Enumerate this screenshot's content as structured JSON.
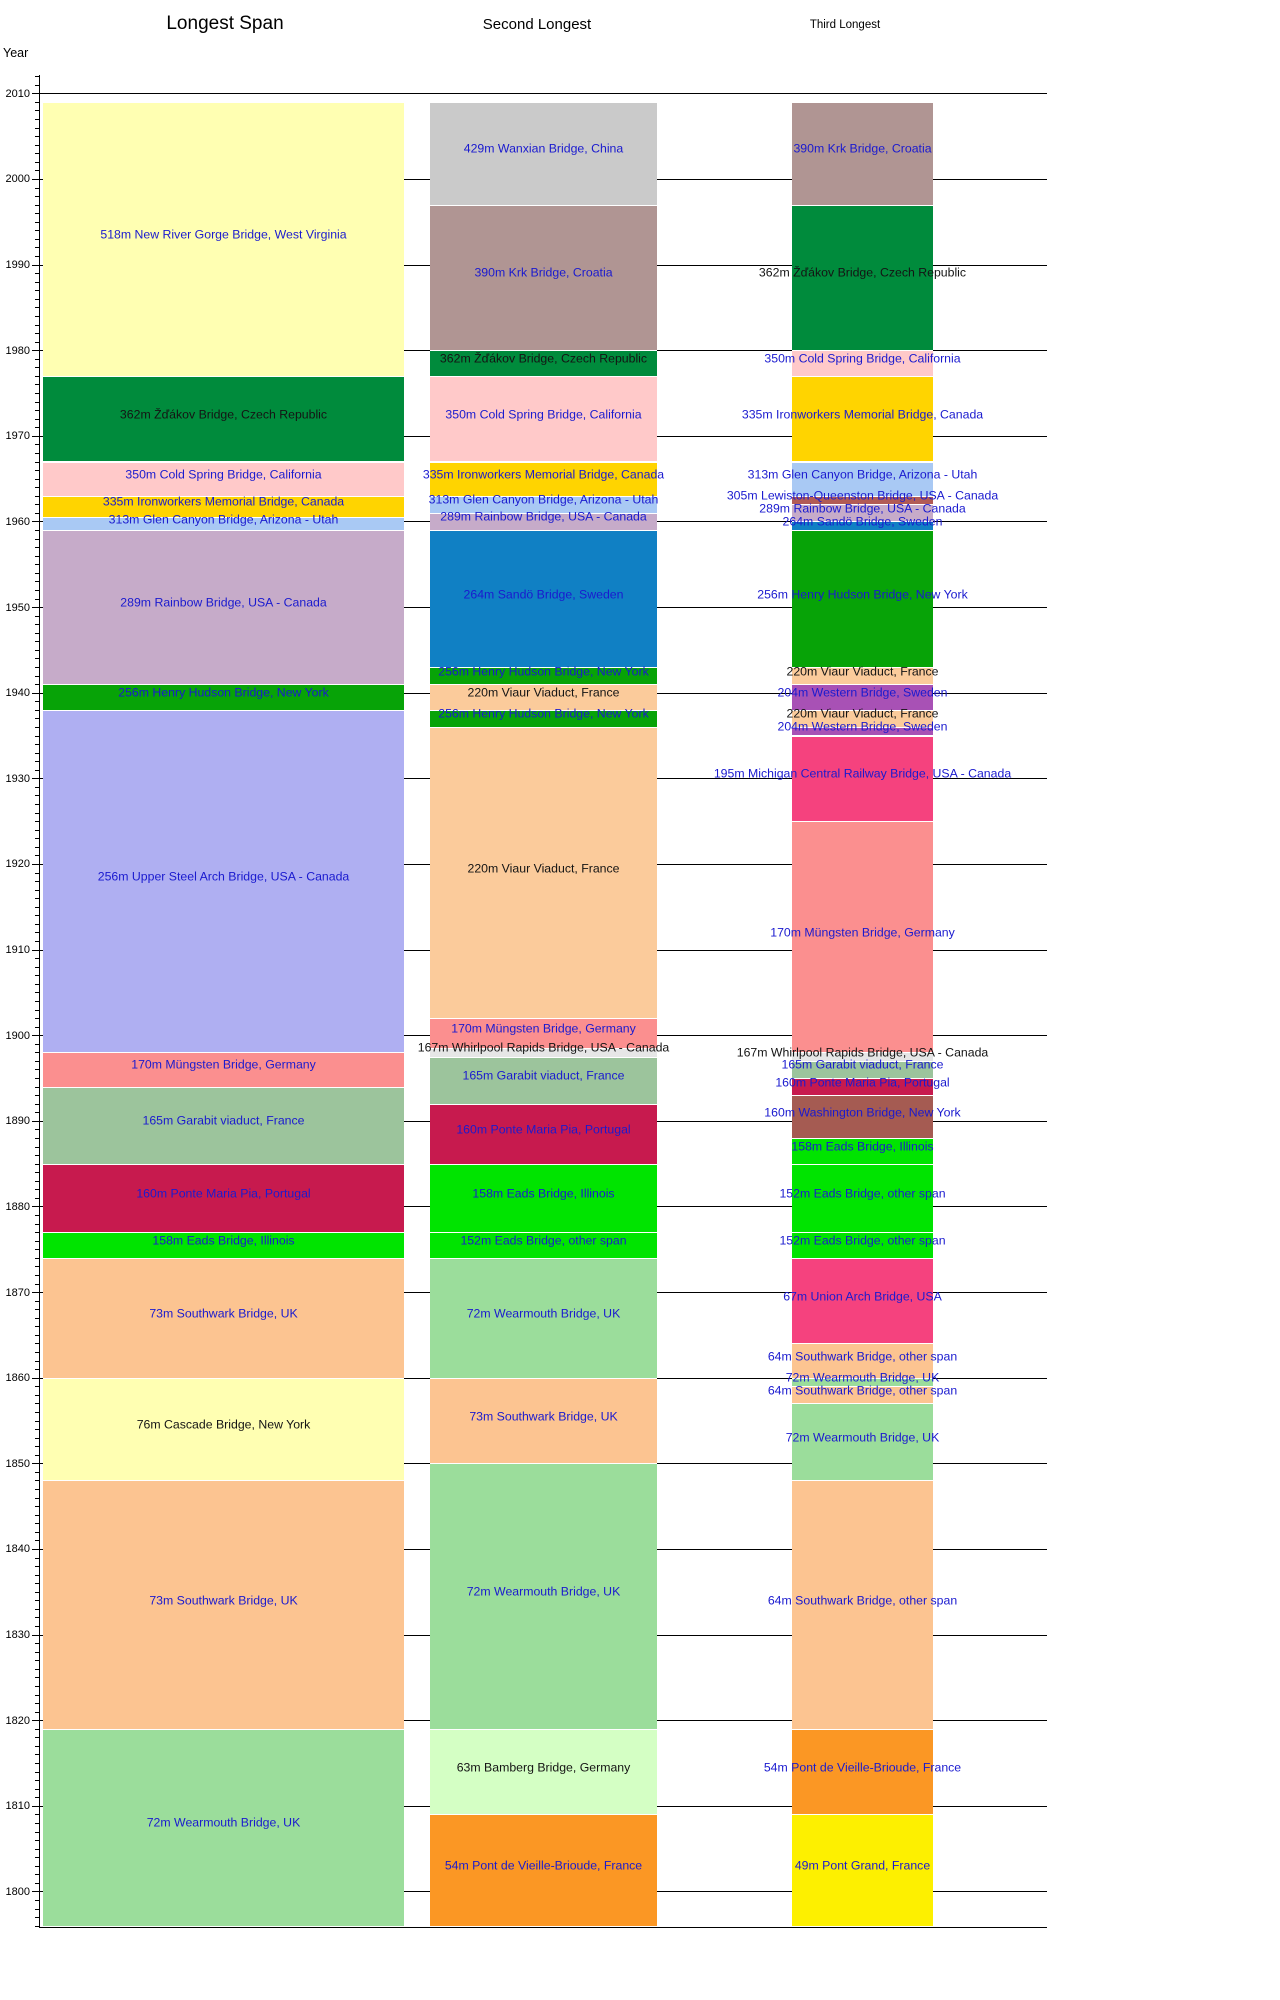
{
  "chart_data": {
    "type": "timeline-bar",
    "description": "Longest arch bridge spans over time, ranked columns by year",
    "ylabel": "Year",
    "y_ticks": [
      2010,
      2000,
      1990,
      1980,
      1970,
      1960,
      1950,
      1940,
      1930,
      1920,
      1910,
      1900,
      1890,
      1880,
      1870,
      1860,
      1850,
      1840,
      1830,
      1820,
      1810,
      1800
    ],
    "y_range": [
      1795.4,
      2012
    ],
    "top_year": 2009,
    "grid": true,
    "label_colors": {
      "blue": "#1a1acf",
      "black": "#141414"
    },
    "columns": [
      {
        "header": "Longest Span",
        "segments": [
          {
            "span_m": 518,
            "label": "518m New River Gorge Bridge, West Virginia",
            "from": 1977,
            "to": 2009,
            "color": "#FFFFB2",
            "tc": "blue"
          },
          {
            "span_m": 362,
            "label": "362m Žďákov Bridge, Czech Republic",
            "from": 1967,
            "to": 1977,
            "color": "#008B3C",
            "tc": "black"
          },
          {
            "span_m": 350,
            "label": "350m Cold Spring Bridge, California",
            "from": 1963,
            "to": 1967,
            "color": "#FFC9C9",
            "tc": "blue"
          },
          {
            "span_m": 335,
            "label": "335m Ironworkers Memorial Bridge, Canada",
            "from": 1960.5,
            "to": 1963,
            "color": "#FFD400",
            "tc": "blue"
          },
          {
            "span_m": 313,
            "label": "313m Glen Canyon Bridge, Arizona - Utah",
            "from": 1959,
            "to": 1960.5,
            "color": "#A9C9F4",
            "tc": "blue"
          },
          {
            "span_m": 289,
            "label": "289m Rainbow Bridge, USA - Canada",
            "from": 1941,
            "to": 1959,
            "color": "#C6ABC9",
            "tc": "blue"
          },
          {
            "span_m": 256,
            "label": "256m Henry Hudson Bridge, New York",
            "from": 1938,
            "to": 1941,
            "color": "#07A307",
            "tc": "blue"
          },
          {
            "span_m": 256,
            "label": "256m Upper Steel Arch Bridge, USA - Canada",
            "from": 1898,
            "to": 1938,
            "color": "#AFAFF2",
            "tc": "blue"
          },
          {
            "span_m": 170,
            "label": "170m Müngsten Bridge, Germany",
            "from": 1894,
            "to": 1898,
            "color": "#FB8F8F",
            "tc": "blue"
          },
          {
            "span_m": 165,
            "label": "165m Garabit viaduct, France",
            "from": 1885,
            "to": 1894,
            "color": "#9CC49C",
            "tc": "blue"
          },
          {
            "span_m": 160,
            "label": "160m Ponte Maria Pia, Portugal",
            "from": 1877,
            "to": 1885,
            "color": "#C71A4E",
            "tc": "blue"
          },
          {
            "span_m": 158,
            "label": "158m Eads Bridge, Illinois",
            "from": 1874,
            "to": 1877,
            "color": "#00E400",
            "tc": "blue"
          },
          {
            "span_m": 73,
            "label": "73m Southwark Bridge, UK",
            "from": 1860,
            "to": 1874,
            "color": "#FCC491",
            "tc": "blue"
          },
          {
            "span_m": 76,
            "label": "76m Cascade Bridge, New York",
            "from": 1848,
            "to": 1860,
            "color": "#FFFFB2",
            "tc": "black"
          },
          {
            "span_m": 73,
            "label": "73m Southwark Bridge, UK",
            "from": 1819,
            "to": 1848,
            "color": "#FCC491",
            "tc": "blue"
          },
          {
            "span_m": 72,
            "label": "72m Wearmouth Bridge, UK",
            "from": 1796,
            "to": 1819,
            "color": "#9BDD9B",
            "tc": "blue"
          }
        ]
      },
      {
        "header": "Second Longest",
        "segments": [
          {
            "span_m": 429,
            "label": "429m Wanxian Bridge, China",
            "from": 1997,
            "to": 2009,
            "color": "#CACACA",
            "tc": "blue"
          },
          {
            "span_m": 390,
            "label": "390m Krk Bridge, Croatia",
            "from": 1980,
            "to": 1997,
            "color": "#B09593",
            "tc": "blue"
          },
          {
            "span_m": 362,
            "label": "362m Žďákov Bridge, Czech Republic",
            "from": 1977,
            "to": 1980,
            "color": "#008B3C",
            "tc": "black"
          },
          {
            "span_m": 350,
            "label": "350m Cold Spring Bridge, California",
            "from": 1967,
            "to": 1977,
            "color": "#FFC9C9",
            "tc": "blue"
          },
          {
            "span_m": 335,
            "label": "335m Ironworkers Memorial Bridge, Canada",
            "from": 1963,
            "to": 1967,
            "color": "#FFD400",
            "tc": "blue"
          },
          {
            "span_m": 313,
            "label": "313m Glen Canyon Bridge, Arizona - Utah",
            "from": 1961,
            "to": 1963,
            "color": "#A9C9F4",
            "tc": "blue"
          },
          {
            "span_m": 289,
            "label": "289m Rainbow Bridge, USA - Canada",
            "from": 1959,
            "to": 1961,
            "color": "#C6ABC9",
            "tc": "blue"
          },
          {
            "span_m": 264,
            "label": "264m Sandö Bridge, Sweden",
            "from": 1943,
            "to": 1959,
            "color": "#1080C4",
            "tc": "blue"
          },
          {
            "span_m": 256,
            "label": "256m Henry Hudson Bridge, New York",
            "from": 1941,
            "to": 1943,
            "color": "#07A307",
            "tc": "blue"
          },
          {
            "span_m": 220,
            "label": "220m Viaur Viaduct, France",
            "from": 1938,
            "to": 1941,
            "color": "#FBCB9B",
            "tc": "black"
          },
          {
            "span_m": 256,
            "label": "256m Henry Hudson Bridge, New York",
            "from": 1936,
            "to": 1938,
            "color": "#07A307",
            "tc": "blue"
          },
          {
            "span_m": 220,
            "label": "220m Viaur Viaduct, France",
            "from": 1902,
            "to": 1936,
            "color": "#FBCB9B",
            "tc": "black"
          },
          {
            "span_m": 170,
            "label": "170m Müngsten Bridge, Germany",
            "from": 1898.5,
            "to": 1902,
            "color": "#FB8F8F",
            "tc": "blue"
          },
          {
            "span_m": 167,
            "label": "167m Whirlpool Rapids Bridge, USA - Canada",
            "from": 1897.5,
            "to": 1898.5,
            "color": "#E6E6E6",
            "tc": "black"
          },
          {
            "span_m": 165,
            "label": "165m Garabit viaduct, France",
            "from": 1892,
            "to": 1897.5,
            "color": "#9CC49C",
            "tc": "blue"
          },
          {
            "span_m": 160,
            "label": "160m Ponte Maria Pia, Portugal",
            "from": 1885,
            "to": 1892,
            "color": "#C71A4E",
            "tc": "blue"
          },
          {
            "span_m": 158,
            "label": "158m Eads Bridge, Illinois",
            "from": 1877,
            "to": 1885,
            "color": "#00E400",
            "tc": "blue"
          },
          {
            "span_m": 152,
            "label": "152m Eads Bridge, other span",
            "from": 1874,
            "to": 1877,
            "color": "#00E400",
            "tc": "blue"
          },
          {
            "span_m": 72,
            "label": "72m Wearmouth Bridge, UK",
            "from": 1860,
            "to": 1874,
            "color": "#9BDD9B",
            "tc": "blue"
          },
          {
            "span_m": 73,
            "label": "73m Southwark Bridge, UK",
            "from": 1850,
            "to": 1860,
            "color": "#FCC491",
            "tc": "blue"
          },
          {
            "span_m": 72,
            "label": "72m Wearmouth Bridge, UK",
            "from": 1819,
            "to": 1850,
            "color": "#9BDD9B",
            "tc": "blue"
          },
          {
            "span_m": 63,
            "label": "63m Bamberg Bridge, Germany",
            "from": 1809,
            "to": 1819,
            "color": "#D4FFC4",
            "tc": "black"
          },
          {
            "span_m": 54,
            "label": "54m Pont de Vieille-Brioude, France",
            "from": 1796,
            "to": 1809,
            "color": "#FB9724",
            "tc": "blue"
          }
        ]
      },
      {
        "header": "Third Longest",
        "segments": [
          {
            "span_m": 390,
            "label": "390m Krk Bridge, Croatia",
            "from": 1997,
            "to": 2009,
            "color": "#B09593",
            "tc": "blue"
          },
          {
            "span_m": 362,
            "label": "362m Žďákov Bridge, Czech Republic",
            "from": 1980,
            "to": 1997,
            "color": "#008B3C",
            "tc": "black"
          },
          {
            "span_m": 350,
            "label": "350m Cold Spring Bridge, California",
            "from": 1977,
            "to": 1980,
            "color": "#FFC9C9",
            "tc": "blue"
          },
          {
            "span_m": 335,
            "label": "335m Ironworkers Memorial Bridge, Canada",
            "from": 1967,
            "to": 1977,
            "color": "#FFD400",
            "tc": "blue"
          },
          {
            "span_m": 313,
            "label": "313m Glen Canyon Bridge, Arizona - Utah",
            "from": 1963,
            "to": 1967,
            "color": "#A9C9F4",
            "tc": "blue"
          },
          {
            "span_m": 305,
            "label": "305m Lewiston-Queenston Bridge, USA - Canada",
            "from": 1962,
            "to": 1963,
            "color": "#B25B55",
            "tc": "blue"
          },
          {
            "span_m": 289,
            "label": "289m Rainbow Bridge, USA - Canada",
            "from": 1960,
            "to": 1962,
            "color": "#C6ABC9",
            "tc": "blue"
          },
          {
            "span_m": 264,
            "label": "264m Sandö Bridge, Sweden",
            "from": 1959,
            "to": 1960,
            "color": "#1080C4",
            "tc": "blue"
          },
          {
            "span_m": 256,
            "label": "256m Henry Hudson Bridge, New York",
            "from": 1943,
            "to": 1959,
            "color": "#07A307",
            "tc": "blue"
          },
          {
            "span_m": 220,
            "label": "220m Viaur Viaduct, France",
            "from": 1941,
            "to": 1943,
            "color": "#FBCB9B",
            "tc": "black"
          },
          {
            "span_m": 204,
            "label": "204m Western Bridge, Sweden",
            "from": 1938,
            "to": 1941,
            "color": "#A851B5",
            "tc": "blue"
          },
          {
            "span_m": 220,
            "label": "220m Viaur Viaduct, France",
            "from": 1936,
            "to": 1938,
            "color": "#FBCB9B",
            "tc": "black"
          },
          {
            "span_m": 204,
            "label": "204m Western Bridge, Sweden",
            "from": 1935,
            "to": 1936,
            "color": "#A851B5",
            "tc": "blue"
          },
          {
            "span_m": 195,
            "label": "195m Michigan Central Railway Bridge, USA - Canada",
            "from": 1925,
            "to": 1935,
            "color": "#F5427E",
            "tc": "blue"
          },
          {
            "span_m": 170,
            "label": "170m Müngsten Bridge, Germany",
            "from": 1898,
            "to": 1925,
            "color": "#FB8F8F",
            "tc": "blue"
          },
          {
            "span_m": 167,
            "label": "167m Whirlpool Rapids Bridge, USA - Canada",
            "from": 1897,
            "to": 1898,
            "color": "#E6E6E6",
            "tc": "black"
          },
          {
            "span_m": 165,
            "label": "165m Garabit viaduct, France",
            "from": 1895,
            "to": 1897,
            "color": "#9CC49C",
            "tc": "blue"
          },
          {
            "span_m": 160,
            "label": "160m Ponte Maria Pia, Portugal",
            "from": 1893,
            "to": 1895,
            "color": "#C71A4E",
            "tc": "blue"
          },
          {
            "span_m": 160,
            "label": "160m Washington Bridge, New York",
            "from": 1888,
            "to": 1893,
            "color": "#A55B52",
            "tc": "blue"
          },
          {
            "span_m": 158,
            "label": "158m Eads Bridge, Illinois",
            "from": 1885,
            "to": 1888,
            "color": "#00E400",
            "tc": "blue"
          },
          {
            "span_m": 152,
            "label": "152m Eads Bridge, other span",
            "from": 1877,
            "to": 1885,
            "color": "#00E400",
            "tc": "blue"
          },
          {
            "span_m": 152,
            "label": "152m Eads Bridge, other span",
            "from": 1874,
            "to": 1877,
            "color": "#00E400",
            "tc": "blue"
          },
          {
            "span_m": 67,
            "label": "67m Union Arch Bridge, USA",
            "from": 1864,
            "to": 1874,
            "color": "#F5427E",
            "tc": "blue"
          },
          {
            "span_m": 64,
            "label": "64m Southwark Bridge, other span",
            "from": 1860,
            "to": 1864,
            "color": "#FCC491",
            "tc": "blue"
          },
          {
            "span_m": 72,
            "label": "72m Wearmouth Bridge, UK",
            "from": 1859,
            "to": 1860,
            "color": "#9BDD9B",
            "tc": "blue"
          },
          {
            "span_m": 64,
            "label": "64m Southwark Bridge, other span",
            "from": 1857,
            "to": 1859,
            "color": "#FCC491",
            "tc": "blue"
          },
          {
            "span_m": 72,
            "label": "72m Wearmouth Bridge, UK",
            "from": 1848,
            "to": 1857,
            "color": "#9BDD9B",
            "tc": "blue"
          },
          {
            "span_m": 64,
            "label": "64m Southwark Bridge, other span",
            "from": 1819,
            "to": 1848,
            "color": "#FCC491",
            "tc": "blue"
          },
          {
            "span_m": 54,
            "label": "54m Pont de Vieille-Brioude, France",
            "from": 1809,
            "to": 1819,
            "color": "#FB9724",
            "tc": "blue"
          },
          {
            "span_m": 49,
            "label": "49m Pont Grand, France",
            "from": 1796,
            "to": 1809,
            "color": "#FDF000",
            "tc": "blue"
          }
        ]
      }
    ]
  }
}
